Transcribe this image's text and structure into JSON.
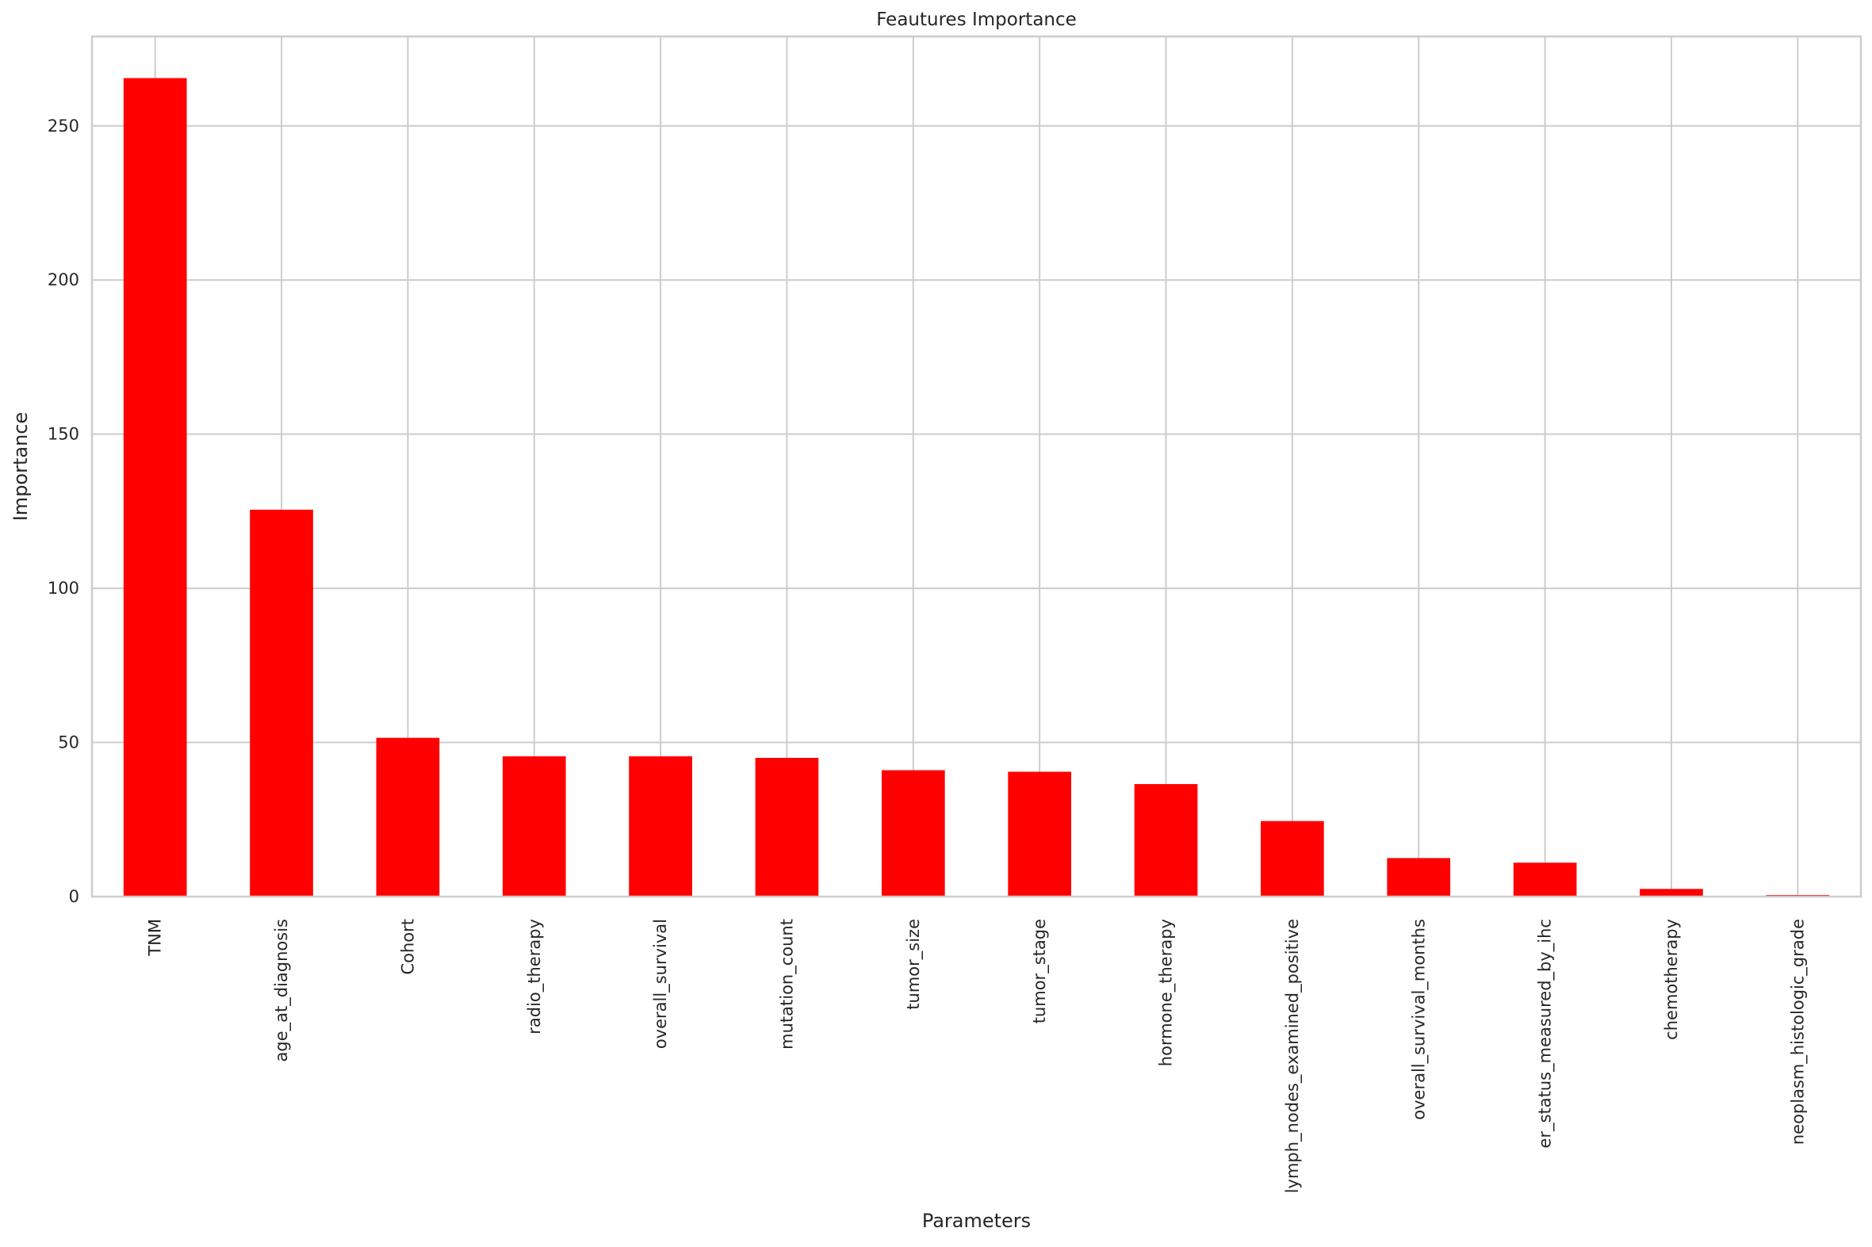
{
  "chart_data": {
    "type": "bar",
    "title": "Feautures Importance",
    "xlabel": "Parameters",
    "ylabel": "Importance",
    "categories": [
      "TNM",
      "age_at_diagnosis",
      "Cohort",
      "radio_therapy",
      "overall_survival",
      "mutation_count",
      "tumor_size",
      "tumor_stage",
      "hormone_therapy",
      "lymph_nodes_examined_positive",
      "overall_survival_months",
      "er_status_measured_by_ihc",
      "chemotherapy",
      "neoplasm_histologic_grade"
    ],
    "values": [
      265.5,
      125.5,
      51.5,
      45.5,
      45.5,
      45,
      41,
      40.5,
      36.5,
      24.5,
      12.5,
      11,
      2.5,
      0.5
    ],
    "yticks": [
      0,
      50,
      100,
      150,
      200,
      250
    ],
    "ylim": [
      0,
      279
    ],
    "grid": true,
    "legend": false,
    "bar_color": "#ff0000",
    "grid_color": "#cccccc",
    "text_color": "#262626",
    "background": "#ffffff"
  }
}
